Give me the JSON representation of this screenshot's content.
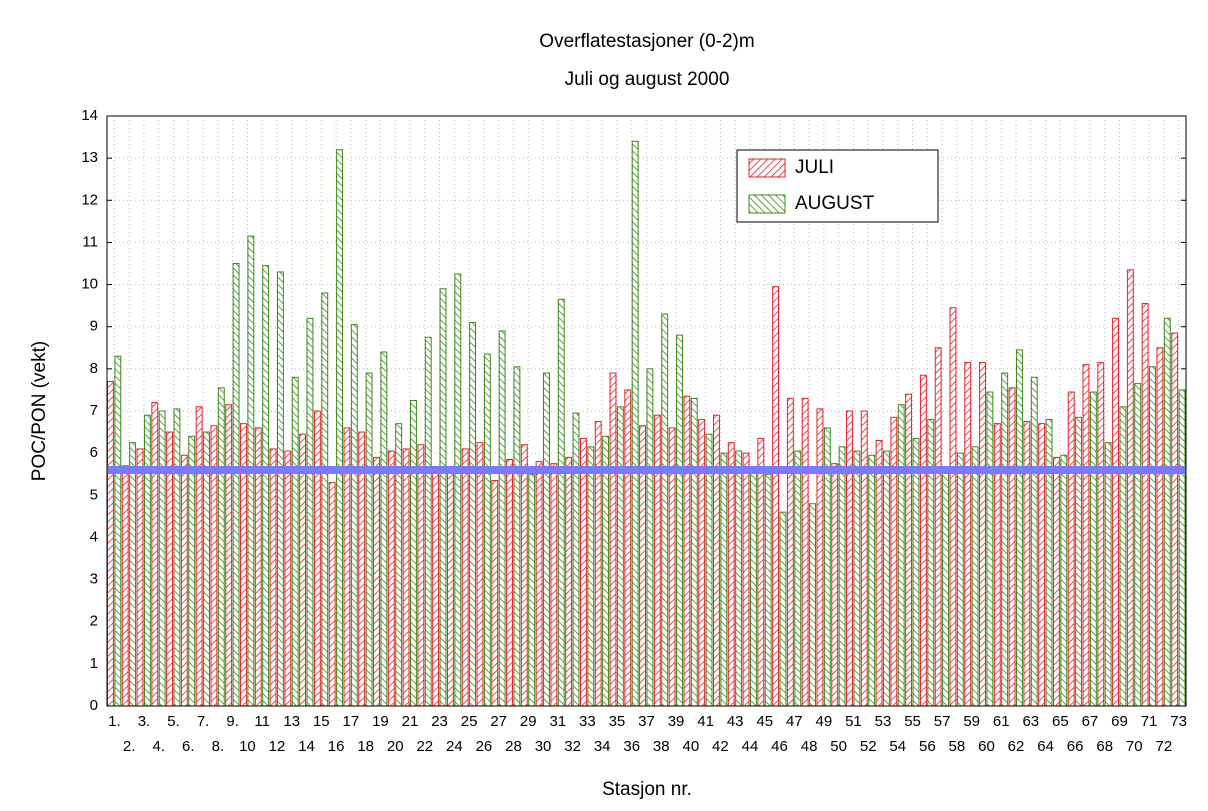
{
  "chart_data": {
    "type": "bar",
    "title": "Overflatestasjoner (0-2)m",
    "subtitle": "Juli og august 2000",
    "x_label": "Stasjon nr.",
    "y_label": "POC/PON (vekt)",
    "categories": [
      "1.",
      "2.",
      "3.",
      "4.",
      "5.",
      "6.",
      "7.",
      "8.",
      "9.",
      "10",
      "11",
      "12",
      "13",
      "14",
      "15",
      "16",
      "17",
      "18",
      "19",
      "20",
      "21",
      "22",
      "23",
      "24",
      "25",
      "26",
      "27",
      "28",
      "29",
      "30",
      "31",
      "32",
      "33",
      "34",
      "35",
      "36",
      "37",
      "38",
      "39",
      "40",
      "41",
      "42",
      "43",
      "44",
      "45",
      "46",
      "47",
      "48",
      "49",
      "50",
      "51",
      "52",
      "53",
      "54",
      "55",
      "56",
      "57",
      "58",
      "59",
      "60",
      "61",
      "62",
      "63",
      "64",
      "65",
      "66",
      "67",
      "68",
      "69",
      "70",
      "71",
      "72",
      "73"
    ],
    "series": [
      {
        "name": "JULI",
        "color": "#e8202a",
        "hatch": "forward",
        "values": [
          7.7,
          5.7,
          6.1,
          7.2,
          6.5,
          5.95,
          7.1,
          6.65,
          7.15,
          6.7,
          6.6,
          6.1,
          6.05,
          6.45,
          7.0,
          5.3,
          6.6,
          6.5,
          5.9,
          6.05,
          6.1,
          6.2,
          5.6,
          5.6,
          6.1,
          6.25,
          5.35,
          5.85,
          6.2,
          5.8,
          5.75,
          5.9,
          6.35,
          6.75,
          7.9,
          7.5,
          6.65,
          6.9,
          6.6,
          7.35,
          6.8,
          6.9,
          6.25,
          6.0,
          6.35,
          9.95,
          7.3,
          7.3,
          7.05,
          5.75,
          7.0,
          7.0,
          6.3,
          6.85,
          7.4,
          7.85,
          8.5,
          9.45,
          8.15,
          8.15,
          6.7,
          7.55,
          6.75,
          6.7,
          5.9,
          7.45,
          8.1,
          8.15,
          9.2,
          10.35,
          9.55,
          8.5,
          8.85
        ]
      },
      {
        "name": "AUGUST",
        "color": "#3a8a1a",
        "hatch": "backward",
        "values": [
          8.3,
          6.25,
          6.9,
          7.0,
          7.05,
          6.4,
          6.5,
          7.55,
          10.5,
          11.15,
          10.45,
          10.3,
          7.8,
          9.2,
          9.8,
          13.2,
          9.05,
          7.9,
          8.4,
          6.7,
          7.25,
          8.75,
          9.9,
          10.25,
          9.1,
          8.35,
          8.9,
          8.05,
          5.5,
          7.9,
          9.65,
          6.95,
          6.15,
          6.4,
          7.1,
          13.4,
          8.0,
          9.3,
          8.8,
          7.3,
          6.45,
          6.0,
          6.05,
          5.6,
          5.5,
          4.6,
          6.05,
          4.8,
          6.6,
          6.15,
          6.05,
          5.95,
          6.05,
          7.15,
          6.35,
          6.8,
          5.55,
          6.0,
          6.15,
          7.45,
          7.9,
          8.45,
          7.8,
          6.8,
          5.95,
          6.85,
          7.45,
          6.25,
          7.1,
          7.65,
          8.05,
          9.2,
          7.5
        ]
      }
    ],
    "reference_line": {
      "value": 5.6,
      "color": "#7a7aff"
    },
    "ylim": [
      0,
      14
    ],
    "yticks": [
      0,
      1,
      2,
      3,
      4,
      5,
      6,
      7,
      8,
      9,
      10,
      11,
      12,
      13,
      14
    ],
    "grid": true,
    "legend": "upper right"
  }
}
